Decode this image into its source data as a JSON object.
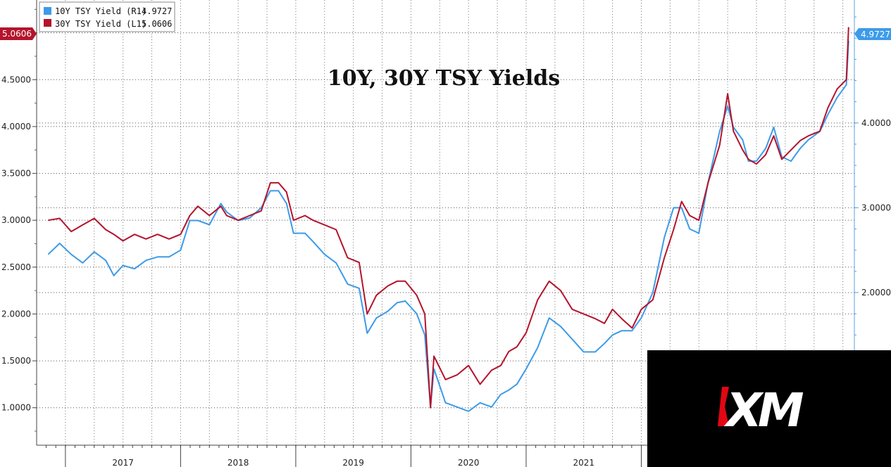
{
  "chart_data": {
    "type": "line",
    "title": "10Y, 30Y TSY Yields",
    "xlabel": "",
    "ylabel": "",
    "x_ticks": [
      "2017",
      "2018",
      "2019",
      "2020",
      "2021"
    ],
    "y_left_ticks": [
      "1.0000",
      "1.5000",
      "2.0000",
      "2.5000",
      "3.0000",
      "3.5000",
      "4.0000",
      "4.5000",
      "5.0000"
    ],
    "y_left_range": [
      0.6,
      5.35
    ],
    "y_right_ticks": [
      "2.0000",
      "3.0000",
      "4.0000"
    ],
    "y_right_range": [
      0.2,
      5.45
    ],
    "grid": true,
    "legend_position": "top-left",
    "series": [
      {
        "name": "10Y TSY Yield (R1)",
        "legend_value": "4.9727",
        "last_badge": "4.9727",
        "axis": "right",
        "color": "#3d9be9",
        "points": [
          [
            2016.85,
            2.45
          ],
          [
            2016.95,
            2.58
          ],
          [
            2017.05,
            2.45
          ],
          [
            2017.15,
            2.35
          ],
          [
            2017.25,
            2.48
          ],
          [
            2017.35,
            2.38
          ],
          [
            2017.42,
            2.2
          ],
          [
            2017.5,
            2.32
          ],
          [
            2017.6,
            2.28
          ],
          [
            2017.7,
            2.38
          ],
          [
            2017.8,
            2.42
          ],
          [
            2017.9,
            2.42
          ],
          [
            2018.0,
            2.5
          ],
          [
            2018.08,
            2.85
          ],
          [
            2018.15,
            2.85
          ],
          [
            2018.25,
            2.8
          ],
          [
            2018.35,
            3.05
          ],
          [
            2018.4,
            2.95
          ],
          [
            2018.5,
            2.85
          ],
          [
            2018.6,
            2.88
          ],
          [
            2018.7,
            3.0
          ],
          [
            2018.78,
            3.2
          ],
          [
            2018.85,
            3.2
          ],
          [
            2018.92,
            3.05
          ],
          [
            2018.98,
            2.7
          ],
          [
            2019.08,
            2.7
          ],
          [
            2019.15,
            2.6
          ],
          [
            2019.25,
            2.45
          ],
          [
            2019.35,
            2.35
          ],
          [
            2019.45,
            2.1
          ],
          [
            2019.55,
            2.05
          ],
          [
            2019.62,
            1.52
          ],
          [
            2019.7,
            1.7
          ],
          [
            2019.8,
            1.78
          ],
          [
            2019.88,
            1.88
          ],
          [
            2019.95,
            1.9
          ],
          [
            2020.05,
            1.75
          ],
          [
            2020.12,
            1.5
          ],
          [
            2020.17,
            0.65
          ],
          [
            2020.2,
            1.1
          ],
          [
            2020.3,
            0.7
          ],
          [
            2020.4,
            0.65
          ],
          [
            2020.5,
            0.6
          ],
          [
            2020.6,
            0.7
          ],
          [
            2020.7,
            0.65
          ],
          [
            2020.78,
            0.8
          ],
          [
            2020.85,
            0.85
          ],
          [
            2020.92,
            0.92
          ],
          [
            2021.0,
            1.1
          ],
          [
            2021.1,
            1.35
          ],
          [
            2021.2,
            1.7
          ],
          [
            2021.3,
            1.6
          ],
          [
            2021.4,
            1.45
          ],
          [
            2021.5,
            1.3
          ],
          [
            2021.6,
            1.3
          ],
          [
            2021.68,
            1.4
          ],
          [
            2021.75,
            1.5
          ],
          [
            2021.83,
            1.55
          ],
          [
            2021.92,
            1.55
          ],
          [
            2022.0,
            1.7
          ],
          [
            2022.1,
            2.0
          ],
          [
            2022.2,
            2.65
          ],
          [
            2022.28,
            3.0
          ],
          [
            2022.35,
            3.0
          ],
          [
            2022.42,
            2.75
          ],
          [
            2022.5,
            2.7
          ],
          [
            2022.58,
            3.3
          ],
          [
            2022.68,
            3.9
          ],
          [
            2022.75,
            4.2
          ],
          [
            2022.8,
            3.95
          ],
          [
            2022.88,
            3.8
          ],
          [
            2022.93,
            3.55
          ],
          [
            2023.0,
            3.55
          ],
          [
            2023.08,
            3.7
          ],
          [
            2023.15,
            3.95
          ],
          [
            2023.22,
            3.6
          ],
          [
            2023.3,
            3.55
          ],
          [
            2023.38,
            3.7
          ],
          [
            2023.45,
            3.8
          ],
          [
            2023.55,
            3.9
          ],
          [
            2023.62,
            4.1
          ],
          [
            2023.7,
            4.3
          ],
          [
            2023.78,
            4.45
          ],
          [
            2023.8,
            4.97
          ]
        ]
      },
      {
        "name": "30Y TSY Yield (L1)",
        "legend_value": "5.0606",
        "last_badge": "5.0606",
        "axis": "left",
        "color": "#b4142c",
        "points": [
          [
            2016.85,
            3.0
          ],
          [
            2016.95,
            3.02
          ],
          [
            2017.05,
            2.88
          ],
          [
            2017.15,
            2.95
          ],
          [
            2017.25,
            3.02
          ],
          [
            2017.35,
            2.9
          ],
          [
            2017.42,
            2.85
          ],
          [
            2017.5,
            2.78
          ],
          [
            2017.6,
            2.85
          ],
          [
            2017.7,
            2.8
          ],
          [
            2017.8,
            2.85
          ],
          [
            2017.9,
            2.8
          ],
          [
            2018.0,
            2.85
          ],
          [
            2018.08,
            3.05
          ],
          [
            2018.15,
            3.15
          ],
          [
            2018.25,
            3.05
          ],
          [
            2018.35,
            3.15
          ],
          [
            2018.4,
            3.05
          ],
          [
            2018.5,
            3.0
          ],
          [
            2018.6,
            3.05
          ],
          [
            2018.7,
            3.1
          ],
          [
            2018.78,
            3.4
          ],
          [
            2018.85,
            3.4
          ],
          [
            2018.92,
            3.3
          ],
          [
            2018.98,
            3.0
          ],
          [
            2019.08,
            3.05
          ],
          [
            2019.15,
            3.0
          ],
          [
            2019.25,
            2.95
          ],
          [
            2019.35,
            2.9
          ],
          [
            2019.45,
            2.6
          ],
          [
            2019.55,
            2.55
          ],
          [
            2019.62,
            2.0
          ],
          [
            2019.7,
            2.2
          ],
          [
            2019.8,
            2.3
          ],
          [
            2019.88,
            2.35
          ],
          [
            2019.95,
            2.35
          ],
          [
            2020.05,
            2.2
          ],
          [
            2020.12,
            2.0
          ],
          [
            2020.17,
            1.0
          ],
          [
            2020.2,
            1.55
          ],
          [
            2020.3,
            1.3
          ],
          [
            2020.4,
            1.35
          ],
          [
            2020.5,
            1.45
          ],
          [
            2020.6,
            1.25
          ],
          [
            2020.7,
            1.4
          ],
          [
            2020.78,
            1.45
          ],
          [
            2020.85,
            1.6
          ],
          [
            2020.92,
            1.65
          ],
          [
            2021.0,
            1.8
          ],
          [
            2021.1,
            2.15
          ],
          [
            2021.2,
            2.35
          ],
          [
            2021.3,
            2.25
          ],
          [
            2021.4,
            2.05
          ],
          [
            2021.5,
            2.0
          ],
          [
            2021.6,
            1.95
          ],
          [
            2021.68,
            1.9
          ],
          [
            2021.75,
            2.05
          ],
          [
            2021.83,
            1.95
          ],
          [
            2021.92,
            1.85
          ],
          [
            2022.0,
            2.05
          ],
          [
            2022.1,
            2.15
          ],
          [
            2022.2,
            2.6
          ],
          [
            2022.28,
            2.9
          ],
          [
            2022.35,
            3.2
          ],
          [
            2022.42,
            3.05
          ],
          [
            2022.5,
            3.0
          ],
          [
            2022.58,
            3.4
          ],
          [
            2022.68,
            3.8
          ],
          [
            2022.75,
            4.35
          ],
          [
            2022.8,
            3.95
          ],
          [
            2022.88,
            3.75
          ],
          [
            2022.93,
            3.65
          ],
          [
            2023.0,
            3.6
          ],
          [
            2023.08,
            3.7
          ],
          [
            2023.15,
            3.9
          ],
          [
            2023.22,
            3.65
          ],
          [
            2023.3,
            3.75
          ],
          [
            2023.38,
            3.85
          ],
          [
            2023.45,
            3.9
          ],
          [
            2023.55,
            3.95
          ],
          [
            2023.62,
            4.2
          ],
          [
            2023.7,
            4.4
          ],
          [
            2023.78,
            4.5
          ],
          [
            2023.8,
            5.06
          ]
        ]
      }
    ]
  },
  "logo": {
    "text": "XM",
    "colors": {
      "background": "#000000",
      "text": "#ffffff",
      "accent": "#e30613"
    }
  }
}
